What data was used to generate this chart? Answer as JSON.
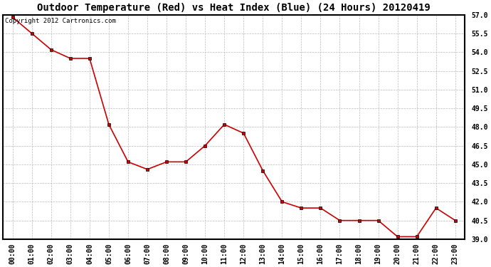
{
  "title": "Outdoor Temperature (Red) vs Heat Index (Blue) (24 Hours) 20120419",
  "copyright_text": "Copyright 2012 Cartronics.com",
  "x_labels": [
    "00:00",
    "01:00",
    "02:00",
    "03:00",
    "04:00",
    "05:00",
    "06:00",
    "07:00",
    "08:00",
    "09:00",
    "10:00",
    "11:00",
    "12:00",
    "13:00",
    "14:00",
    "15:00",
    "16:00",
    "17:00",
    "18:00",
    "19:00",
    "20:00",
    "21:00",
    "22:00",
    "23:00"
  ],
  "temp_data": [
    56.8,
    55.5,
    54.2,
    53.5,
    53.5,
    48.2,
    45.2,
    44.6,
    45.2,
    45.2,
    46.5,
    48.2,
    47.5,
    44.5,
    42.0,
    41.5,
    41.5,
    40.5,
    40.5,
    40.5,
    39.2,
    39.2,
    41.5,
    40.5
  ],
  "ylim": [
    39.0,
    57.0
  ],
  "yticks": [
    39.0,
    40.5,
    42.0,
    43.5,
    45.0,
    46.5,
    48.0,
    49.5,
    51.0,
    52.5,
    54.0,
    55.5,
    57.0
  ],
  "line_color": "#cc0000",
  "marker_style": "s",
  "marker_size": 3,
  "bg_color": "#ffffff",
  "plot_bg_color": "#ffffff",
  "grid_color": "#bbbbbb",
  "title_fontsize": 10,
  "tick_fontsize": 7,
  "copyright_fontsize": 6.5,
  "border_color": "#000000",
  "border_linewidth": 1.5
}
